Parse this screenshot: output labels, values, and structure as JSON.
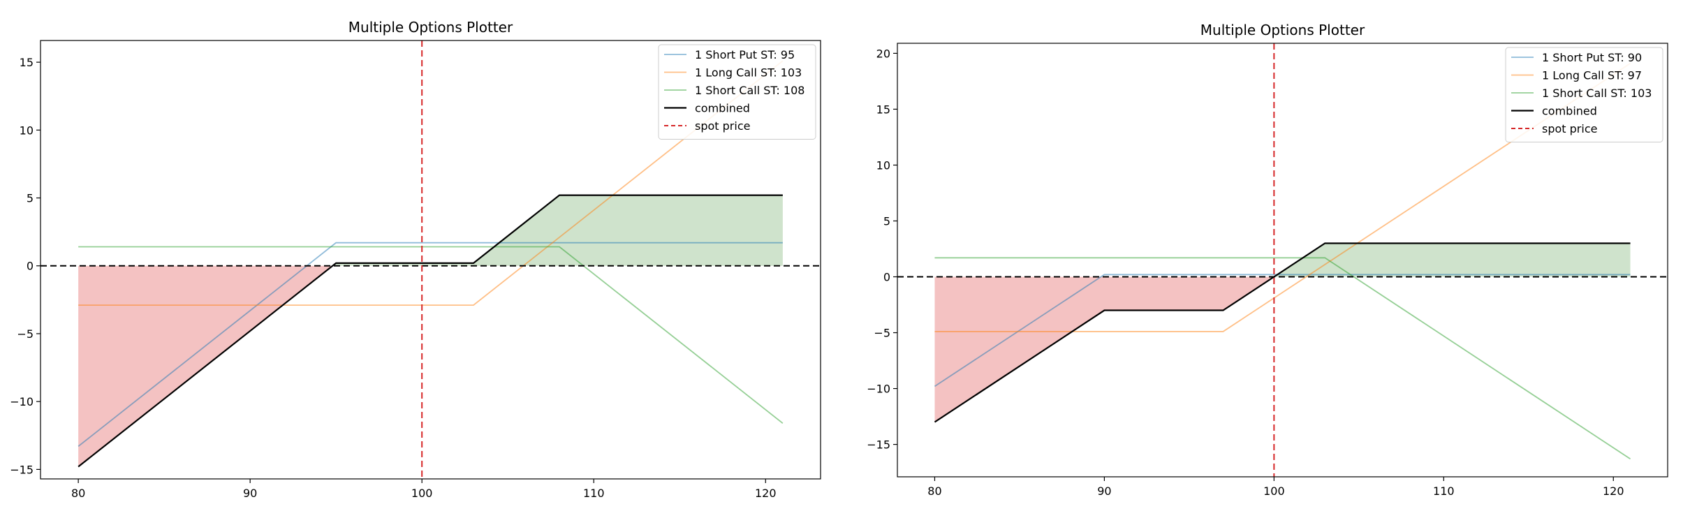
{
  "chart_data": [
    {
      "type": "line",
      "title": "Multiple Options Plotter",
      "xlabel": "",
      "ylabel": "",
      "xlim": [
        77.8,
        123.2
      ],
      "ylim": [
        -15.7,
        16.6
      ],
      "xticks": [
        80,
        90,
        100,
        110,
        120
      ],
      "yticks": [
        -15,
        -10,
        -5,
        0,
        5,
        10,
        15
      ],
      "grid": false,
      "legend_position": "upper right",
      "spot_price": 100,
      "zero_line": 0,
      "series": [
        {
          "name": "1 Short Put ST: 95",
          "color": "#1f77b4",
          "x": [
            80,
            95,
            121
          ],
          "y": [
            -13.3,
            1.7,
            1.7
          ]
        },
        {
          "name": "1 Long Call ST: 103",
          "color": "#ff7f0e",
          "x": [
            80,
            103,
            121
          ],
          "y": [
            -2.9,
            -2.9,
            15.1
          ]
        },
        {
          "name": "1 Short Call ST: 108",
          "color": "#2ca02c",
          "x": [
            80,
            108,
            121
          ],
          "y": [
            1.4,
            1.4,
            -11.6
          ]
        },
        {
          "name": "combined",
          "color": "#000000",
          "x": [
            80,
            95,
            103,
            108,
            121
          ],
          "y": [
            -14.8,
            0.2,
            0.2,
            5.2,
            5.2
          ]
        }
      ],
      "spot_label": "spot price",
      "loss_fill_color": "#f4c2c2",
      "profit_fill_color": "#cfe3cc"
    },
    {
      "type": "line",
      "title": "Multiple Options Plotter",
      "xlabel": "",
      "ylabel": "",
      "xlim": [
        77.8,
        123.2
      ],
      "ylim": [
        -17.9,
        20.9
      ],
      "xticks": [
        80,
        90,
        100,
        110,
        120
      ],
      "yticks": [
        -15,
        -10,
        -5,
        0,
        5,
        10,
        15,
        20
      ],
      "grid": false,
      "legend_position": "upper right",
      "spot_price": 100,
      "zero_line": 0,
      "series": [
        {
          "name": "1 Short Put ST: 90",
          "color": "#1f77b4",
          "x": [
            80,
            90,
            121
          ],
          "y": [
            -9.8,
            0.2,
            0.2
          ]
        },
        {
          "name": "1 Long Call ST: 97",
          "color": "#ff7f0e",
          "x": [
            80,
            97,
            121
          ],
          "y": [
            -4.9,
            -4.9,
            19.1
          ]
        },
        {
          "name": "1 Short Call ST: 103",
          "color": "#2ca02c",
          "x": [
            80,
            103,
            121
          ],
          "y": [
            1.7,
            1.7,
            -16.3
          ]
        },
        {
          "name": "combined",
          "color": "#000000",
          "x": [
            80,
            90,
            97,
            103,
            121
          ],
          "y": [
            -13.0,
            -3.0,
            -3.0,
            3.0,
            3.0
          ]
        }
      ],
      "spot_label": "spot price",
      "loss_fill_color": "#f4c2c2",
      "profit_fill_color": "#cfe3cc"
    }
  ]
}
